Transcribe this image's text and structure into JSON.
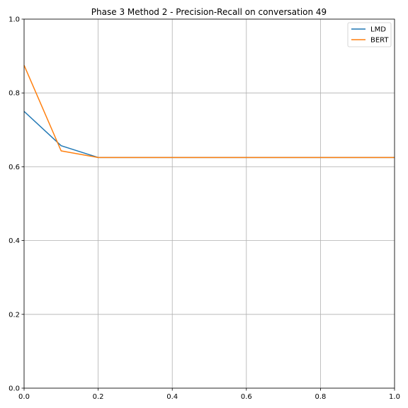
{
  "chart_data": {
    "type": "line",
    "title": "Phase 3 Method 2 - Precision-Recall on conversation 49",
    "xlabel": "",
    "ylabel": "",
    "xlim": [
      0,
      1
    ],
    "ylim": [
      0,
      1
    ],
    "xticks": [
      "0.0",
      "0.2",
      "0.4",
      "0.6",
      "0.8",
      "1.0"
    ],
    "yticks": [
      "0.0",
      "0.2",
      "0.4",
      "0.6",
      "0.8",
      "1.0"
    ],
    "grid": true,
    "legend_position": "top-right",
    "series": [
      {
        "name": "LMD",
        "color": "#1f77b4",
        "x": [
          0.0,
          0.1,
          0.2,
          0.3,
          0.4,
          0.5,
          0.6,
          0.7,
          0.8,
          0.9,
          1.0
        ],
        "y": [
          0.75,
          0.657,
          0.625,
          0.625,
          0.625,
          0.625,
          0.625,
          0.625,
          0.625,
          0.625,
          0.625
        ]
      },
      {
        "name": "BERT",
        "color": "#ff7f0e",
        "x": [
          0.0,
          0.1,
          0.2,
          0.3,
          0.4,
          0.5,
          0.6,
          0.7,
          0.8,
          0.9,
          1.0
        ],
        "y": [
          0.875,
          0.643,
          0.625,
          0.625,
          0.625,
          0.625,
          0.625,
          0.625,
          0.625,
          0.625,
          0.625
        ]
      }
    ]
  }
}
